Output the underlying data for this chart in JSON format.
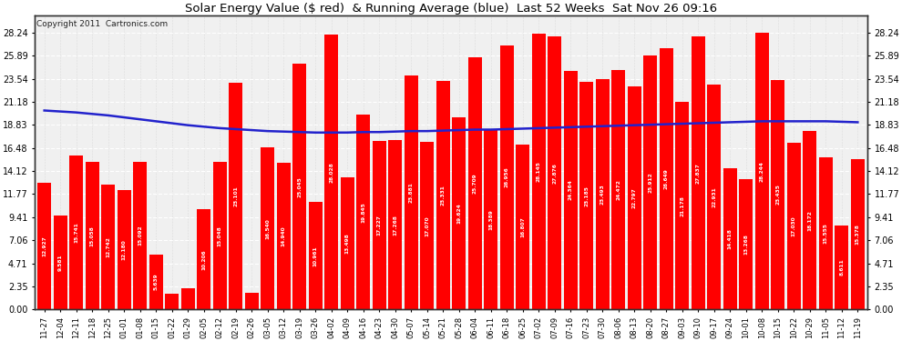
{
  "title": "Solar Energy Value ($ red)  & Running Average (blue)  Last 52 Weeks  Sat Nov 26 09:16",
  "copyright": "Copyright 2011  Cartronics.com",
  "bar_color": "#ff0000",
  "avg_line_color": "#2222cc",
  "background_color": "#ffffff",
  "plot_bg_color": "#f0f0f0",
  "grid_color": "#ffffff",
  "yticks": [
    0.0,
    2.35,
    4.71,
    7.06,
    9.41,
    11.77,
    14.12,
    16.48,
    18.83,
    21.18,
    23.54,
    25.89,
    28.24
  ],
  "categories": [
    "11-27",
    "12-04",
    "12-11",
    "12-18",
    "12-25",
    "01-01",
    "01-08",
    "01-15",
    "01-22",
    "01-29",
    "02-05",
    "02-12",
    "02-19",
    "02-26",
    "03-05",
    "03-12",
    "03-19",
    "03-26",
    "04-02",
    "04-09",
    "04-16",
    "04-23",
    "04-30",
    "05-07",
    "05-14",
    "05-21",
    "05-28",
    "06-04",
    "06-11",
    "06-18",
    "06-25",
    "07-02",
    "07-09",
    "07-16",
    "07-23",
    "07-30",
    "08-06",
    "08-13",
    "08-20",
    "08-27",
    "09-03",
    "09-10",
    "09-17",
    "09-24",
    "10-01",
    "10-08",
    "10-15",
    "10-22",
    "10-29",
    "11-05",
    "11-12",
    "11-19"
  ],
  "values": [
    12.927,
    9.581,
    15.741,
    15.058,
    12.742,
    12.18,
    15.092,
    5.639,
    1.577,
    2.155,
    10.206,
    15.048,
    23.101,
    1.707,
    16.54,
    14.94,
    25.045,
    10.961,
    28.028,
    13.498,
    19.845,
    17.227,
    17.268,
    23.881,
    17.07,
    23.331,
    19.624,
    25.709,
    18.389,
    26.956,
    16.807,
    28.145,
    27.876,
    24.364,
    23.185,
    23.493,
    24.472,
    22.797,
    25.912,
    26.649,
    21.178,
    27.837,
    22.931,
    14.418,
    13.268,
    28.244,
    23.435,
    17.03,
    18.172,
    15.555,
    8.611,
    15.378
  ],
  "running_avg": [
    20.3,
    20.2,
    20.1,
    19.95,
    19.8,
    19.6,
    19.4,
    19.2,
    19.0,
    18.8,
    18.65,
    18.5,
    18.4,
    18.3,
    18.2,
    18.15,
    18.1,
    18.05,
    18.05,
    18.05,
    18.1,
    18.1,
    18.15,
    18.2,
    18.2,
    18.25,
    18.3,
    18.35,
    18.35,
    18.4,
    18.45,
    18.5,
    18.55,
    18.6,
    18.65,
    18.7,
    18.75,
    18.8,
    18.85,
    18.9,
    18.95,
    19.0,
    19.05,
    19.1,
    19.15,
    19.2,
    19.2,
    19.2,
    19.2,
    19.2,
    19.15,
    19.1
  ]
}
